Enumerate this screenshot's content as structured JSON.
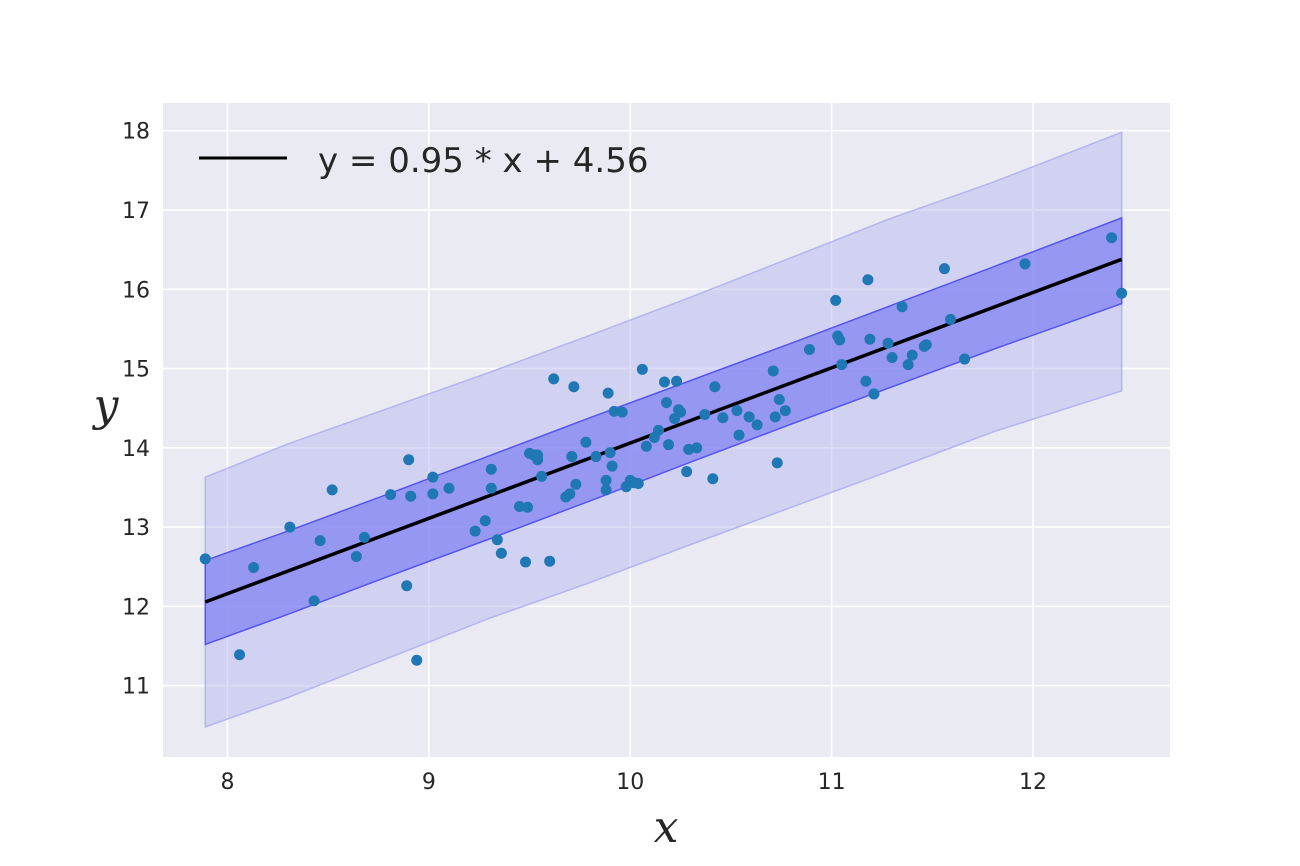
{
  "chart_data": {
    "type": "scatter",
    "title": "",
    "xlabel": "x",
    "ylabel": "y",
    "xlim": [
      7.68,
      12.68
    ],
    "ylim": [
      10.1,
      18.35
    ],
    "x_ticks": [
      8,
      9,
      10,
      11,
      12
    ],
    "y_ticks": [
      11,
      12,
      13,
      14,
      15,
      16,
      17,
      18
    ],
    "grid": true,
    "legend_position": "top-left",
    "colors": {
      "background": "#eaeaf2",
      "grid": "#ffffff",
      "points": "#1f77b4",
      "fit_line": "#000000",
      "inner_band": "#6e6ef5",
      "outer_band": "#b4b4f0"
    },
    "fit_line": {
      "label": "y = 0.95 * x + 4.56",
      "slope": 0.95,
      "intercept": 4.56,
      "x_range": [
        7.89,
        12.44
      ]
    },
    "bands": {
      "inner": {
        "x": [
          7.89,
          8.3,
          8.8,
          9.3,
          9.8,
          10.3,
          10.8,
          11.3,
          11.8,
          12.44
        ],
        "lower": [
          11.52,
          11.9,
          12.38,
          12.85,
          13.33,
          13.82,
          14.3,
          14.77,
          15.24,
          15.82
        ],
        "upper": [
          12.58,
          12.95,
          13.42,
          13.9,
          14.38,
          14.85,
          15.32,
          15.8,
          16.28,
          16.9
        ]
      },
      "outer": {
        "x": [
          7.89,
          8.3,
          8.8,
          9.3,
          9.8,
          10.3,
          10.8,
          11.3,
          11.8,
          12.44
        ],
        "lower": [
          10.48,
          10.85,
          11.35,
          11.85,
          12.3,
          12.78,
          13.25,
          13.72,
          14.2,
          14.72
        ],
        "upper": [
          13.63,
          14.05,
          14.5,
          14.95,
          15.42,
          15.9,
          16.4,
          16.9,
          17.35,
          17.98
        ]
      }
    },
    "points": {
      "x": [
        7.89,
        8.06,
        8.13,
        8.31,
        8.43,
        8.46,
        8.52,
        8.64,
        8.68,
        8.81,
        8.89,
        8.9,
        8.91,
        8.94,
        9.02,
        9.02,
        9.1,
        9.23,
        9.28,
        9.31,
        9.31,
        9.34,
        9.36,
        9.45,
        9.48,
        9.49,
        9.5,
        9.52,
        9.54,
        9.54,
        9.56,
        9.6,
        9.62,
        9.68,
        9.7,
        9.71,
        9.72,
        9.73,
        9.78,
        9.83,
        9.88,
        9.88,
        9.89,
        9.9,
        9.91,
        9.92,
        9.96,
        9.98,
        10.0,
        10.02,
        10.04,
        10.06,
        10.08,
        10.12,
        10.14,
        10.17,
        10.18,
        10.19,
        10.22,
        10.23,
        10.24,
        10.25,
        10.28,
        10.29,
        10.33,
        10.37,
        10.41,
        10.42,
        10.46,
        10.53,
        10.54,
        10.59,
        10.63,
        10.71,
        10.72,
        10.73,
        10.74,
        10.77,
        10.89,
        11.02,
        11.03,
        11.04,
        11.05,
        11.17,
        11.18,
        11.19,
        11.21,
        11.28,
        11.3,
        11.35,
        11.38,
        11.4,
        11.46,
        11.47,
        11.56,
        11.59,
        11.66,
        11.96,
        12.39,
        12.44
      ],
      "y": [
        12.6,
        11.39,
        12.49,
        13.0,
        12.07,
        12.83,
        13.47,
        12.63,
        12.87,
        13.41,
        12.26,
        13.85,
        13.39,
        11.32,
        13.63,
        13.42,
        13.49,
        12.95,
        13.08,
        13.73,
        13.49,
        12.84,
        12.67,
        13.26,
        12.56,
        13.25,
        13.93,
        13.91,
        13.85,
        13.91,
        13.64,
        12.57,
        14.87,
        13.38,
        13.42,
        13.89,
        14.77,
        13.54,
        14.07,
        13.89,
        13.59,
        13.47,
        14.69,
        13.94,
        13.77,
        14.46,
        14.45,
        13.51,
        13.59,
        13.56,
        13.55,
        14.99,
        14.02,
        14.13,
        14.22,
        14.83,
        14.57,
        14.04,
        14.37,
        14.84,
        14.48,
        14.45,
        13.7,
        13.98,
        14.0,
        14.42,
        13.61,
        14.77,
        14.38,
        14.47,
        14.16,
        14.39,
        14.29,
        14.97,
        14.39,
        13.81,
        14.61,
        14.47,
        15.24,
        15.86,
        15.41,
        15.36,
        15.05,
        14.84,
        16.12,
        15.37,
        14.68,
        15.32,
        15.14,
        15.78,
        15.05,
        15.17,
        15.28,
        15.3,
        16.26,
        15.62,
        15.12,
        16.32,
        16.65,
        15.95
      ]
    }
  }
}
